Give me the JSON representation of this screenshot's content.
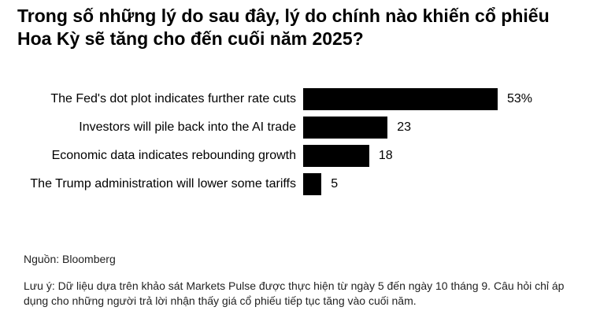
{
  "chart_data": {
    "type": "barh",
    "title": "Trong số những lý do sau đây, lý do chính nào khiến cổ phiếu Hoa Kỳ sẽ tăng cho đến cuối năm 2025?",
    "categories": [
      "The Fed's dot plot indicates further rate cuts",
      "Investors will pile back into the AI trade",
      "Economic data indicates rebounding growth",
      "The Trump administration will lower some tariffs"
    ],
    "values": [
      53,
      23,
      18,
      5
    ],
    "value_labels": [
      "53%",
      "23",
      "18",
      "5"
    ],
    "color": "#000000",
    "source": "Nguồn: Bloomberg",
    "note": "Lưu ý: Dữ liệu dựa trên khảo sát Markets Pulse được thực hiện từ ngày 5 đến ngày 10 tháng 9. Câu hỏi chỉ áp dụng cho những người trả lời nhận thấy giá cổ phiếu tiếp tục tăng vào cuối năm."
  }
}
